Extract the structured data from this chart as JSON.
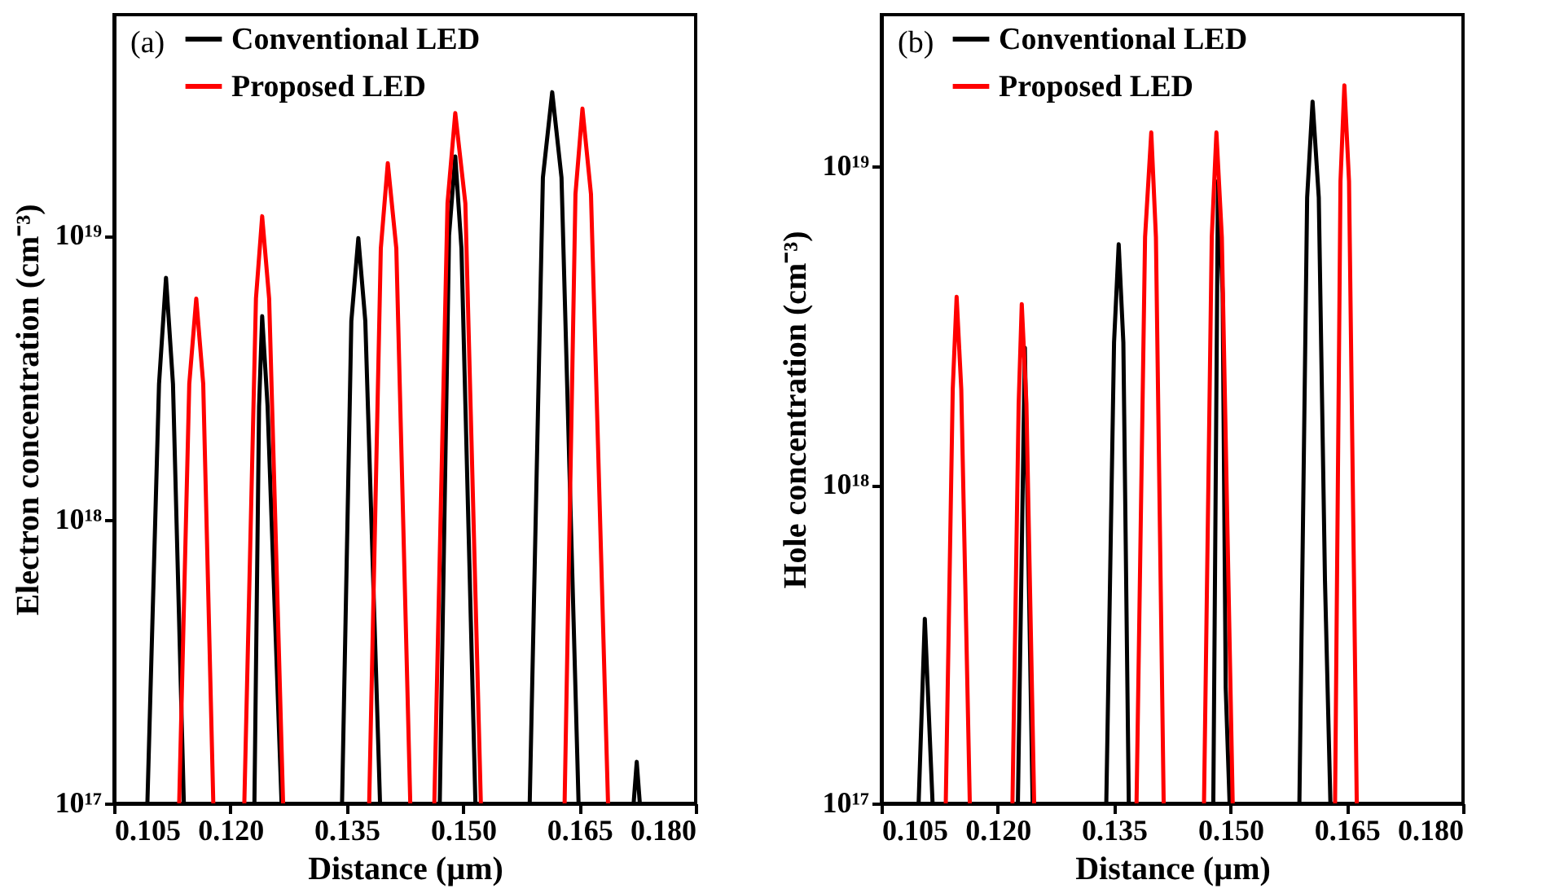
{
  "chart_data": [
    {
      "type": "line",
      "xlabel": "Distance (µm)",
      "ylabel": "Electron concentration (cm⁻³)",
      "annotations": [
        "(a)"
      ],
      "log": "y",
      "grid": false,
      "legend": "top left",
      "marker": "none",
      "line_style": "solid",
      "xlim": [
        0.105,
        0.18
      ],
      "xticks": [
        0.105,
        {
          "value": 0.12,
          "label": "0.120"
        },
        0.135,
        {
          "value": 0.15,
          "label": "0.150"
        },
        0.165,
        {
          "value": 0.18,
          "label": "0.180"
        }
      ],
      "ylim": [
        1e+17,
        6e+19
      ],
      "yticks": [
        {
          "value": 1e+17,
          "label": "10¹⁷"
        },
        {
          "value": 1e+18,
          "label": "10¹⁸"
        },
        {
          "value": 1e+19,
          "label": "10¹⁹"
        }
      ],
      "series": [
        {
          "name": "Conventional LED",
          "color": "#000000",
          "x": [
            0.1093,
            0.1108,
            0.1117,
            0.1126,
            0.114,
            null,
            0.1231,
            0.1237,
            0.1241,
            0.1248,
            0.1266,
            null,
            0.1344,
            0.1356,
            0.1365,
            0.1374,
            0.1393,
            null,
            0.147,
            0.1482,
            0.149,
            0.1498,
            0.1516,
            null,
            0.1586,
            0.1603,
            0.1615,
            0.1627,
            0.1649,
            null,
            0.172,
            0.1724,
            0.1728
          ],
          "values": [
            1e+17,
            3e+18,
            7.1e+18,
            3e+18,
            1e+17,
            null,
            1e+17,
            2.5e+18,
            5.2e+18,
            2.5e+18,
            1e+17,
            null,
            1e+17,
            5e+18,
            9.8e+18,
            5e+18,
            1e+17,
            null,
            1e+17,
            1e+19,
            1.9e+19,
            9e+18,
            1e+17,
            null,
            1e+17,
            1.6e+19,
            3.2e+19,
            1.6e+19,
            1e+17,
            null,
            1e+17,
            1.4e+17,
            1e+17
          ]
        },
        {
          "name": "Proposed LED",
          "color": "#ff0000",
          "x": [
            0.1134,
            0.1147,
            0.1156,
            0.1165,
            0.1178,
            null,
            0.1218,
            0.1233,
            0.1241,
            0.125,
            0.1268,
            null,
            0.1379,
            0.1394,
            0.1403,
            0.1414,
            0.1432,
            null,
            0.1463,
            0.148,
            0.149,
            0.1503,
            0.1523,
            null,
            0.1631,
            0.1645,
            0.1654,
            0.1665,
            0.1687
          ],
          "values": [
            1e+17,
            3e+18,
            6e+18,
            3e+18,
            1e+17,
            null,
            1e+17,
            6e+18,
            1.17e+19,
            6e+18,
            1e+17,
            null,
            1e+17,
            9e+18,
            1.8e+19,
            9e+18,
            1e+17,
            null,
            1e+17,
            1.3e+19,
            2.7e+19,
            1.3e+19,
            1e+17,
            null,
            1e+17,
            1.4e+19,
            2.8e+19,
            1.4e+19,
            1e+17
          ]
        }
      ]
    },
    {
      "type": "line",
      "xlabel": "Distance (µm)",
      "ylabel": "Hole concentration (cm⁻³)",
      "annotations": [
        "(b)"
      ],
      "log": "y",
      "grid": false,
      "legend": "top left",
      "marker": "none",
      "line_style": "solid",
      "xlim": [
        0.105,
        0.18
      ],
      "xticks": [
        0.105,
        {
          "value": 0.12,
          "label": "0.120"
        },
        0.135,
        {
          "value": 0.15,
          "label": "0.150"
        },
        0.165,
        {
          "value": 0.18,
          "label": "0.180"
        }
      ],
      "ylim": [
        1e+17,
        3e+19
      ],
      "yticks": [
        {
          "value": 1e+17,
          "label": "10¹⁷"
        },
        {
          "value": 1e+18,
          "label": "10¹⁸"
        },
        {
          "value": 1e+19,
          "label": "10¹⁹"
        }
      ],
      "series": [
        {
          "name": "Conventional LED",
          "color": "#000000",
          "x": [
            0.1098,
            0.1106,
            0.1116,
            null,
            0.1226,
            0.1235,
            0.1245,
            null,
            0.134,
            0.135,
            0.1356,
            0.1362,
            0.1369,
            null,
            0.1478,
            0.1484,
            0.149,
            0.1494,
            0.1499,
            null,
            0.1589,
            0.1599,
            0.1606,
            0.1614,
            0.1622,
            0.1629
          ],
          "values": [
            1e+17,
            3.8e+17,
            1e+17,
            null,
            1e+17,
            2.7e+18,
            1e+17,
            null,
            1e+17,
            2.8e+18,
            5.7e+18,
            2.8e+18,
            1e+17,
            null,
            1e+17,
            9e+18,
            4e+18,
            2.3e+17,
            1e+17,
            null,
            1e+17,
            8e+18,
            1.6e+19,
            8e+18,
            5e+17,
            1e+17
          ]
        },
        {
          "name": "Proposed LED",
          "color": "#ff0000",
          "x": [
            0.1133,
            0.1142,
            0.1147,
            0.1153,
            0.1164,
            null,
            0.1219,
            0.1227,
            0.1231,
            0.1237,
            0.1247,
            null,
            0.1379,
            0.139,
            0.1398,
            0.1404,
            0.1414,
            null,
            0.1466,
            0.1476,
            0.1482,
            0.1489,
            0.1503,
            null,
            0.1635,
            0.1642,
            0.1647,
            0.1653,
            0.1663
          ],
          "values": [
            1e+17,
            2e+18,
            3.9e+18,
            2e+18,
            1e+17,
            null,
            1e+17,
            1.8e+18,
            3.7e+18,
            1.8e+18,
            1e+17,
            null,
            1e+17,
            6e+18,
            1.28e+19,
            6e+18,
            1e+17,
            null,
            1e+17,
            6e+18,
            1.28e+19,
            6e+18,
            1e+17,
            null,
            1e+17,
            9e+18,
            1.8e+19,
            9e+18,
            1e+17
          ]
        }
      ]
    }
  ]
}
